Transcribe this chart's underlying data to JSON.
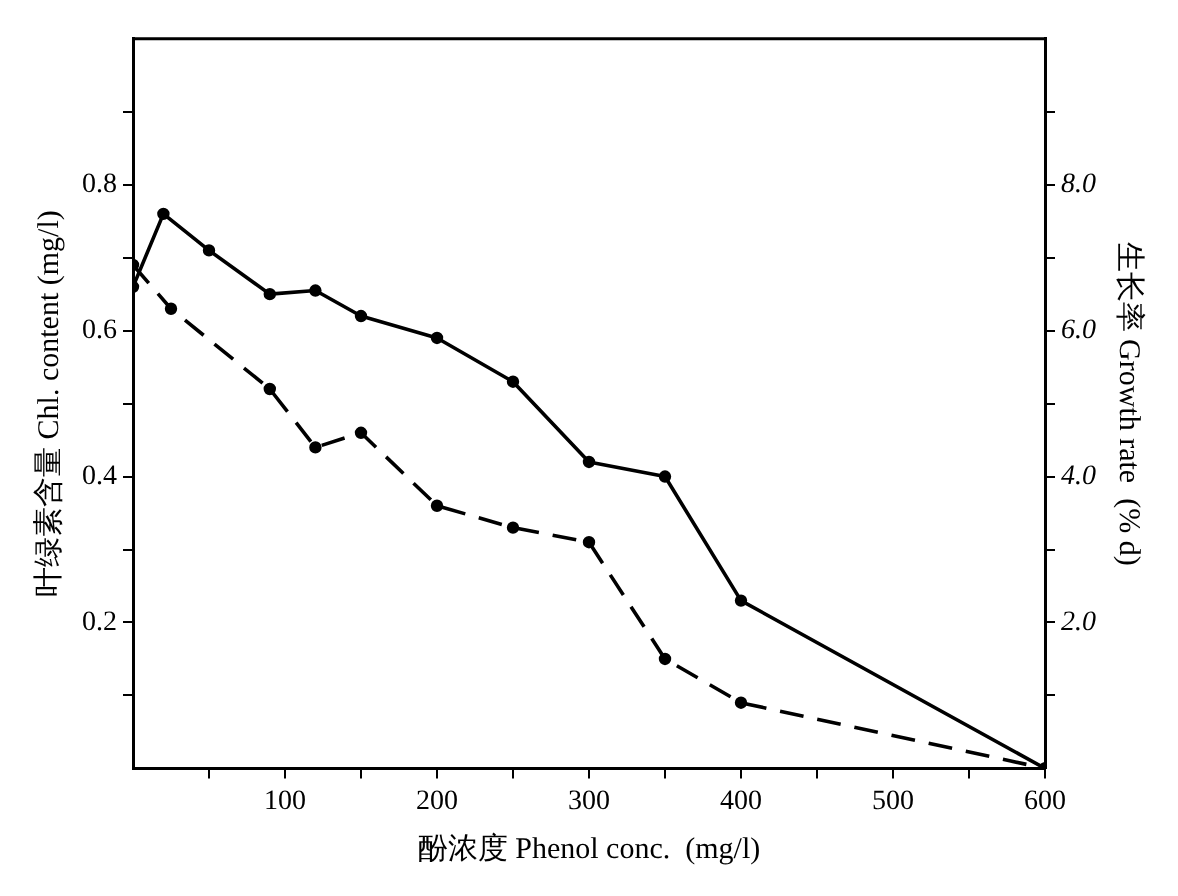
{
  "chart_data": {
    "type": "line",
    "xlabel": "酚浓度 Phenol conc.  (mg/l)",
    "ylabel": "叶绿素含量 Chl. content (mg/l)",
    "y2label": "生长率 Growth rate  (% d)",
    "xlim": [
      0,
      600
    ],
    "xticks": [
      {
        "value": 50,
        "label": null
      },
      100,
      {
        "value": 150,
        "label": null
      },
      200,
      {
        "value": 250,
        "label": null
      },
      300,
      {
        "value": 350,
        "label": null
      },
      400,
      {
        "value": 450,
        "label": null
      },
      500,
      {
        "value": 550,
        "label": null
      },
      600
    ],
    "ylim": [
      0,
      1
    ],
    "yticks": [
      {
        "value": 0.1,
        "label": null
      },
      0.2,
      {
        "value": 0.3,
        "label": null
      },
      0.4,
      {
        "value": 0.5,
        "label": null
      },
      0.6,
      {
        "value": 0.7,
        "label": null
      },
      0.8,
      {
        "value": 0.9,
        "label": null
      }
    ],
    "y2lim": [
      0,
      10
    ],
    "y2ticks": [
      {
        "value": 1,
        "label": null
      },
      {
        "value": 2,
        "label": "2.0"
      },
      {
        "value": 3,
        "label": null
      },
      {
        "value": 4,
        "label": "4.0"
      },
      {
        "value": 5,
        "label": null
      },
      {
        "value": 6,
        "label": "6.0"
      },
      {
        "value": 7,
        "label": null
      },
      {
        "value": 8,
        "label": "8.0"
      },
      {
        "value": 9,
        "label": null
      }
    ],
    "grid": false,
    "legend": false,
    "marker": "circle",
    "series": [
      {
        "color": "#000000",
        "line_style": "solid",
        "x": [
          0,
          20,
          50,
          90,
          120,
          150,
          200,
          250,
          300,
          350,
          400,
          600
        ],
        "values": [
          0.66,
          0.76,
          0.71,
          0.65,
          0.655,
          0.62,
          0.59,
          0.53,
          0.42,
          0.4,
          0.23,
          0
        ]
      },
      {
        "color": "#000000",
        "line_style": "dashed",
        "axis": "y2",
        "x": [
          0,
          25,
          90,
          120,
          150,
          200,
          250,
          300,
          350,
          400,
          600
        ],
        "values": [
          6.9,
          6.3,
          5.2,
          4.4,
          4.6,
          3.6,
          3.3,
          3.1,
          1.5,
          0.9,
          0
        ]
      }
    ]
  }
}
